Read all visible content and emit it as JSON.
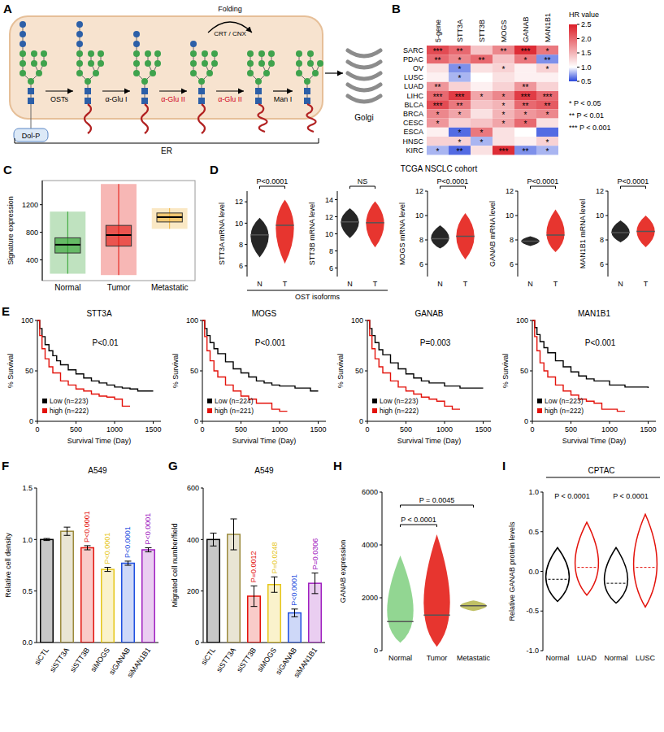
{
  "diagram": {
    "panel": "A",
    "labels": {
      "dol_p": "Dol-P",
      "osts": "OSTs",
      "glu1": "α-Glu I",
      "glu2a": "α-Glu II",
      "glu2b": "α-Glu II",
      "man1": "Man I",
      "folding": "Folding",
      "crt_cnx": "CRT / CNX",
      "er": "ER",
      "golgi": "Golgi"
    }
  },
  "texts": {
    "d_title": "TCGA NSCLC cohort",
    "d_group": "OST isoforms"
  },
  "chart_data": [
    {
      "panel": "B",
      "type": "heatmap",
      "rows": [
        "SARC",
        "PDAC",
        "OV",
        "LUSC",
        "LUAD",
        "LIHC",
        "BLCA",
        "BRCA",
        "CESC",
        "ESCA",
        "HNSC",
        "KIRC"
      ],
      "columns": [
        "5-gene",
        "STT3A",
        "STT3B",
        "MOGS",
        "GANAB",
        "MAN1B1"
      ],
      "values": [
        [
          2.2,
          2.0,
          1.4,
          1.8,
          2.4,
          1.9
        ],
        [
          2.0,
          1.8,
          2.0,
          1.4,
          1.9,
          0.7
        ],
        [
          1.2,
          0.7,
          1.2,
          1.3,
          1.1,
          1.3
        ],
        [
          1.1,
          0.8,
          1.0,
          1.2,
          1.1,
          1.1
        ],
        [
          1.7,
          1.3,
          1.1,
          1.3,
          1.7,
          1.3
        ],
        [
          2.0,
          2.3,
          1.6,
          1.8,
          2.3,
          2.0
        ],
        [
          2.2,
          1.9,
          1.4,
          1.5,
          2.0,
          2.1
        ],
        [
          1.8,
          1.6,
          1.2,
          1.5,
          1.7,
          1.8
        ],
        [
          1.7,
          1.3,
          1.4,
          1.6,
          2.0,
          1.2
        ],
        [
          1.1,
          0.6,
          1.9,
          1.2,
          1.0,
          0.6
        ],
        [
          1.3,
          1.3,
          0.8,
          1.2,
          1.1,
          1.3
        ],
        [
          0.8,
          0.6,
          1.2,
          2.4,
          0.7,
          0.8
        ]
      ],
      "stars": [
        [
          "***",
          "**",
          null,
          "**",
          "***",
          "*"
        ],
        [
          "**",
          "*",
          "**",
          null,
          "*",
          "**"
        ],
        [
          null,
          "*",
          null,
          "*",
          null,
          "*"
        ],
        [
          null,
          "*",
          null,
          null,
          null,
          null
        ],
        [
          "**",
          null,
          null,
          null,
          "**",
          null
        ],
        [
          "***",
          "***",
          "*",
          "*",
          "***",
          "***"
        ],
        [
          "***",
          "**",
          null,
          "*",
          "**",
          "**"
        ],
        [
          "*",
          "*",
          null,
          "*",
          "*",
          "*"
        ],
        [
          "*",
          null,
          null,
          "*",
          "*",
          null
        ],
        [
          null,
          "*",
          "*",
          null,
          null,
          null
        ],
        [
          null,
          "*",
          "*",
          null,
          null,
          "*"
        ],
        [
          "*",
          "**",
          null,
          "***",
          "**",
          "*"
        ]
      ],
      "colorbar": {
        "title": "HR value",
        "range": [
          0.5,
          2.5
        ],
        "ticks": [
          0.5,
          {
            "value": 1,
            "label": "1.0"
          },
          1.5,
          {
            "value": 2,
            "label": "2.0"
          },
          2.5
        ]
      },
      "annotations": [
        "* P < 0.05",
        "** P < 0.01",
        "*** P < 0.001"
      ]
    },
    {
      "panel": "C",
      "type": "box",
      "y_label": "Signature expression",
      "categories": [
        "Normal",
        "Tumor",
        "Metastatic"
      ],
      "colors": [
        "#2ca02c",
        "#e3120b",
        "#f0b43c"
      ],
      "low": [
        200,
        180,
        850
      ],
      "q1": [
        500,
        600,
        950
      ],
      "median": [
        620,
        760,
        1020
      ],
      "q3": [
        720,
        900,
        1080
      ],
      "high": [
        1100,
        1500,
        1150
      ],
      "ylim": [
        100,
        1550
      ],
      "yticks": [
        400,
        800,
        1200
      ]
    },
    {
      "panel": "D",
      "type": "dot",
      "y_label": "STT3A mRNA level",
      "categories": [
        "N",
        "T"
      ],
      "colors": [
        "#000000",
        "#e3120b"
      ],
      "low": [
        6.8,
        6.2
      ],
      "median": [
        8.9,
        9.8
      ],
      "high": [
        10.5,
        12.2
      ],
      "ylim": [
        5,
        13
      ],
      "yticks": [
        6,
        8,
        10,
        12
      ],
      "p_label": "P<0.0001"
    },
    {
      "type": "dot",
      "y_label": "STT3B mRNA level",
      "categories": [
        "N",
        "T"
      ],
      "colors": [
        "#000000",
        "#e3120b"
      ],
      "low": [
        9.5,
        8.4
      ],
      "median": [
        11.4,
        11.3
      ],
      "high": [
        13,
        13.8
      ],
      "ylim": [
        5,
        15
      ],
      "yticks": [
        6,
        8,
        10,
        12,
        14
      ],
      "p_label": "NS"
    },
    {
      "type": "dot",
      "y_label": "MOGS mRNA level",
      "categories": [
        "N",
        "T"
      ],
      "colors": [
        "#000000",
        "#e3120b"
      ],
      "low": [
        7.3,
        6.4
      ],
      "median": [
        8.1,
        8.3
      ],
      "high": [
        9.2,
        10.2
      ],
      "ylim": [
        5,
        12
      ],
      "yticks": [
        6,
        8,
        10,
        12
      ],
      "p_label": "P<0.0001"
    },
    {
      "type": "dot",
      "y_label": "GANAB mRNA level",
      "categories": [
        "N",
        "T"
      ],
      "colors": [
        "#000000",
        "#e3120b"
      ],
      "low": [
        7.5,
        7.0
      ],
      "median": [
        7.9,
        8.4
      ],
      "high": [
        8.3,
        10.5
      ],
      "ylim": [
        5,
        12
      ],
      "yticks": [
        6,
        8,
        10,
        12
      ],
      "p_label": "P<0.0001"
    },
    {
      "type": "dot",
      "y_label": "MAN1B1 mRNA level",
      "categories": [
        "N",
        "T"
      ],
      "colors": [
        "#000000",
        "#e3120b"
      ],
      "low": [
        7.8,
        7.4
      ],
      "median": [
        8.6,
        8.7
      ],
      "high": [
        9.6,
        10.0
      ],
      "ylim": [
        5,
        12
      ],
      "yticks": [
        6,
        8,
        10,
        12
      ],
      "p_label": "P<0.0001"
    },
    {
      "panel": "E",
      "type": "line",
      "line_style": "step",
      "title": "STT3A",
      "x_label": "Survival Time (Day)",
      "y_label": "% Survival",
      "xlim": [
        0,
        1600
      ],
      "xticks": [
        0,
        500,
        1000,
        1500
      ],
      "ylim": [
        0,
        100
      ],
      "yticks": [
        0,
        50,
        100
      ],
      "legend": "lower left",
      "p_label": "P<0.01",
      "series": [
        {
          "name": "Low (n=223)",
          "color": "#000000",
          "x": [
            0,
            30,
            60,
            100,
            150,
            200,
            250,
            300,
            400,
            500,
            600,
            700,
            800,
            900,
            1000,
            1100,
            1200,
            1300,
            1400,
            1500
          ],
          "values": [
            100,
            92,
            84,
            76,
            70,
            65,
            60,
            56,
            51,
            47,
            43,
            40,
            38,
            36,
            34,
            33,
            32,
            30,
            30,
            30
          ]
        },
        {
          "name": "high (n=222)",
          "color": "#e3120b",
          "x": [
            0,
            30,
            60,
            100,
            150,
            200,
            300,
            400,
            500,
            600,
            700,
            800,
            900,
            1000,
            1100,
            1200
          ],
          "values": [
            100,
            85,
            72,
            62,
            54,
            48,
            40,
            36,
            32,
            30,
            27,
            25,
            24,
            22,
            15,
            15
          ]
        }
      ]
    },
    {
      "type": "line",
      "line_style": "step",
      "title": "MOGS",
      "x_label": "Survival Time (Day)",
      "y_label": "% Survival",
      "xlim": [
        0,
        1600
      ],
      "xticks": [
        0,
        500,
        1000,
        1500
      ],
      "ylim": [
        0,
        100
      ],
      "yticks": [
        0,
        50,
        100
      ],
      "legend": "lower left",
      "p_label": "P<0.001",
      "series": [
        {
          "name": "Low (n=224)",
          "color": "#000000",
          "x": [
            0,
            30,
            60,
            100,
            150,
            200,
            300,
            400,
            500,
            600,
            700,
            800,
            900,
            1000,
            1200,
            1400,
            1500
          ],
          "values": [
            100,
            92,
            85,
            78,
            72,
            67,
            59,
            52,
            48,
            44,
            40,
            38,
            36,
            35,
            33,
            30,
            30
          ]
        },
        {
          "name": "high (n=221)",
          "color": "#e3120b",
          "x": [
            0,
            30,
            60,
            100,
            150,
            200,
            300,
            400,
            500,
            600,
            700,
            900,
            1000,
            1100
          ],
          "values": [
            100,
            84,
            70,
            60,
            50,
            44,
            36,
            30,
            25,
            22,
            18,
            12,
            10,
            10
          ]
        }
      ]
    },
    {
      "type": "line",
      "line_style": "step",
      "title": "GANAB",
      "x_label": "Survival Time (Day)",
      "y_label": "% Survival",
      "xlim": [
        0,
        1600
      ],
      "xticks": [
        0,
        500,
        1000,
        1500
      ],
      "ylim": [
        0,
        100
      ],
      "yticks": [
        0,
        50,
        100
      ],
      "legend": "lower left",
      "p_label": "P=0.003",
      "series": [
        {
          "name": "Low (n=223)",
          "color": "#000000",
          "x": [
            0,
            30,
            60,
            100,
            150,
            200,
            300,
            400,
            500,
            600,
            700,
            800,
            1000,
            1200,
            1500
          ],
          "values": [
            100,
            92,
            85,
            78,
            71,
            66,
            58,
            52,
            47,
            43,
            40,
            38,
            35,
            33,
            33
          ]
        },
        {
          "name": "high (n=222)",
          "color": "#e3120b",
          "x": [
            0,
            30,
            60,
            100,
            150,
            200,
            300,
            400,
            500,
            600,
            700,
            800,
            900,
            1000,
            1100,
            1200
          ],
          "values": [
            100,
            85,
            72,
            62,
            54,
            48,
            40,
            34,
            30,
            27,
            24,
            22,
            20,
            15,
            12,
            12
          ]
        }
      ]
    },
    {
      "type": "line",
      "line_style": "step",
      "title": "MAN1B1",
      "x_label": "Survival Time (Day)",
      "y_label": "% Survival",
      "xlim": [
        0,
        1600
      ],
      "xticks": [
        0,
        500,
        1000,
        1500
      ],
      "ylim": [
        0,
        100
      ],
      "yticks": [
        0,
        50,
        100
      ],
      "legend": "lower left",
      "p_label": "P<0.001",
      "series": [
        {
          "name": "Low (n=223)",
          "color": "#000000",
          "x": [
            0,
            30,
            60,
            100,
            150,
            200,
            300,
            400,
            500,
            600,
            700,
            800,
            1000,
            1200,
            1500
          ],
          "values": [
            100,
            93,
            86,
            79,
            73,
            68,
            60,
            54,
            49,
            45,
            42,
            40,
            36,
            34,
            33
          ]
        },
        {
          "name": "high (n=222)",
          "color": "#e3120b",
          "x": [
            0,
            30,
            60,
            100,
            150,
            200,
            300,
            400,
            500,
            600,
            700,
            800,
            900,
            1100,
            1200
          ],
          "values": [
            100,
            84,
            70,
            58,
            50,
            44,
            36,
            30,
            26,
            22,
            20,
            18,
            12,
            10,
            10
          ]
        }
      ]
    },
    {
      "panel": "F",
      "type": "bar",
      "title": "A549",
      "y_label": "Relative cell density",
      "categories": [
        "siCTL",
        "siSTT3A",
        "siSTT3B",
        "siMOGS",
        "siGANAB",
        "siMAN1B1"
      ],
      "values": [
        1.0,
        1.08,
        0.92,
        0.71,
        0.77,
        0.9
      ],
      "errors": [
        0.01,
        0.04,
        0.02,
        0.02,
        0.02,
        0.02
      ],
      "colors": [
        "#000000",
        "#9b8a3c",
        "#e3120b",
        "#e6c619",
        "#1f4fe0",
        "#a020c0"
      ],
      "p_labels": [
        null,
        null,
        "P<0.0001",
        "P<0.0001",
        "P<0.0001",
        "P<0.0001"
      ],
      "ylim": [
        0,
        1.5
      ],
      "yticks": [
        {
          "value": 0,
          "label": "0.0"
        },
        0.5,
        {
          "value": 1,
          "label": "1.0"
        },
        1.5
      ]
    },
    {
      "panel": "G",
      "type": "bar",
      "title": "A549",
      "y_label": "Migrated cell number/field",
      "categories": [
        "siCTL",
        "siSTT3A",
        "siSTT3B",
        "siMOGS",
        "siGANAB",
        "siMAN1B1"
      ],
      "values": [
        400,
        420,
        180,
        225,
        115,
        230
      ],
      "errors": [
        25,
        60,
        40,
        30,
        15,
        40
      ],
      "colors": [
        "#000000",
        "#9b8a3c",
        "#e3120b",
        "#e6c619",
        "#1f4fe0",
        "#a020c0"
      ],
      "p_labels": [
        null,
        null,
        "P=0.0012",
        "P=0.0248",
        "P<0.0001",
        "P=0.0306"
      ],
      "ylim": [
        0,
        600
      ],
      "yticks": [
        0,
        200,
        400,
        600
      ]
    },
    {
      "panel": "H",
      "type": "dot",
      "y_label": "GANAB expression",
      "categories": [
        "Normal",
        "Tumor",
        "Metastatic"
      ],
      "colors": [
        "#7fcf7f",
        "#e3120b",
        "#b5b54a"
      ],
      "low": [
        300,
        150,
        1500
      ],
      "median": [
        1100,
        1350,
        1700
      ],
      "high": [
        3600,
        4400,
        1900
      ],
      "ylim": [
        0,
        6000
      ],
      "yticks": [
        0,
        2000,
        4000,
        6000
      ],
      "comparisons": [
        {
          "groups": [
            "Normal",
            "Tumor"
          ],
          "label": "P < 0.0001"
        },
        {
          "groups": [
            "Normal",
            "Metastatic"
          ],
          "label": "P = 0.0045"
        }
      ]
    },
    {
      "panel": "I",
      "type": "violin",
      "title": "CPTAC",
      "y_label": "Relative GANAB protein levels",
      "categories": [
        "Normal",
        "LUAD",
        "Normal",
        "LUSC"
      ],
      "colors": [
        "#000000",
        "#e3120b",
        "#000000",
        "#e3120b"
      ],
      "low": [
        -0.38,
        -0.3,
        -0.4,
        -0.45
      ],
      "median": [
        -0.1,
        0.05,
        -0.15,
        0.05
      ],
      "high": [
        0.3,
        0.62,
        0.3,
        0.72
      ],
      "ylim": [
        -1,
        1
      ],
      "yticks": [
        {
          "value": -1,
          "label": "-1.0"
        },
        -0.5,
        {
          "value": 0,
          "label": "0.0"
        },
        0.5,
        {
          "value": 1,
          "label": "1.0"
        }
      ],
      "p_labels": [
        "P < 0.0001",
        "P < 0.0001"
      ]
    }
  ]
}
